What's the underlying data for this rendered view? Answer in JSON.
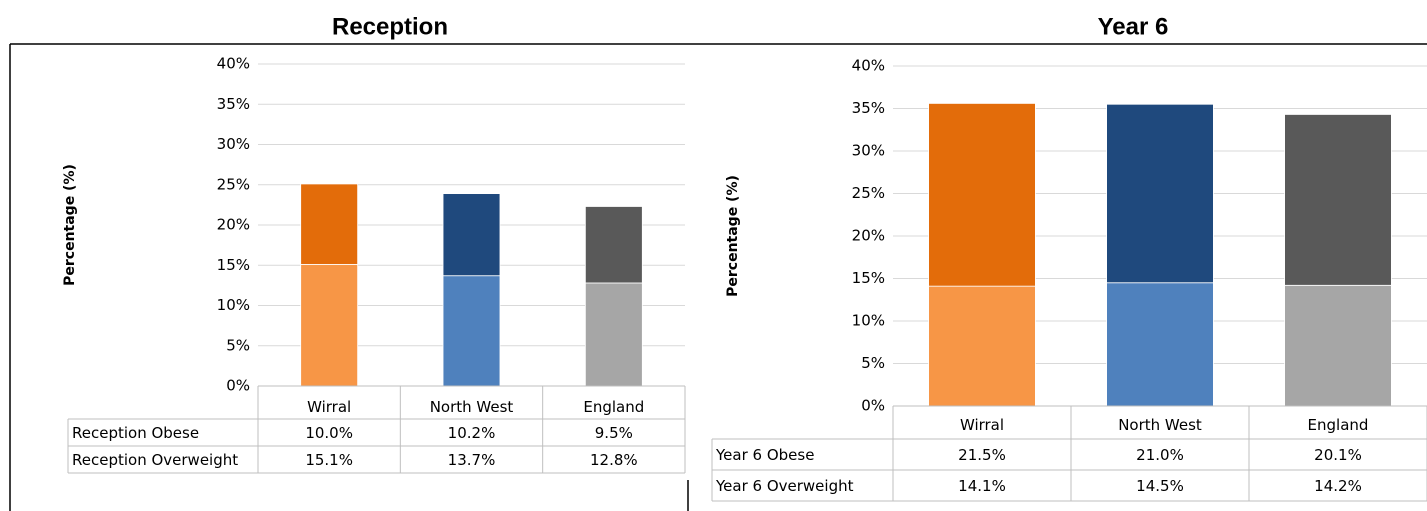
{
  "chart_data": [
    {
      "type": "bar",
      "stacked": true,
      "title": "Reception",
      "y_label": "Percentage (%)",
      "categories": [
        "Wirral",
        "North West",
        "England"
      ],
      "series": [
        {
          "name": "Reception  Obese",
          "colors": [
            "#e36c0a",
            "#1f497d",
            "#595959"
          ],
          "values": [
            10.0,
            10.2,
            9.5
          ],
          "value_labels": [
            "10.0%",
            "10.2%",
            "9.5%"
          ]
        },
        {
          "name": "Reception Overweight",
          "colors": [
            "#f79646",
            "#4f81bd",
            "#a6a6a6"
          ],
          "values": [
            15.1,
            13.7,
            12.8
          ],
          "value_labels": [
            "15.1%",
            "13.7%",
            "12.8%"
          ]
        }
      ],
      "ylim": [
        0,
        40
      ],
      "yticks": [
        {
          "value": 0,
          "label": "0%"
        },
        {
          "value": 5,
          "label": "5%"
        },
        {
          "value": 10,
          "label": "10%"
        },
        {
          "value": 15,
          "label": "15%"
        },
        {
          "value": 20,
          "label": "20%"
        },
        {
          "value": 25,
          "label": "25%"
        },
        {
          "value": 30,
          "label": "30%"
        },
        {
          "value": 35,
          "label": "35%"
        },
        {
          "value": 40,
          "label": "40%"
        }
      ],
      "grid": true
    },
    {
      "type": "bar",
      "stacked": true,
      "title": "Year 6",
      "y_label": "Percentage (%)",
      "categories": [
        "Wirral",
        "North West",
        "England"
      ],
      "series": [
        {
          "name": "Year 6  Obese",
          "colors": [
            "#e36c0a",
            "#1f497d",
            "#595959"
          ],
          "values": [
            21.5,
            21.0,
            20.1
          ],
          "value_labels": [
            "21.5%",
            "21.0%",
            "20.1%"
          ]
        },
        {
          "name": "Year 6 Overweight",
          "colors": [
            "#f79646",
            "#4f81bd",
            "#a6a6a6"
          ],
          "values": [
            14.1,
            14.5,
            14.2
          ],
          "value_labels": [
            "14.1%",
            "14.5%",
            "14.2%"
          ]
        }
      ],
      "ylim": [
        0,
        40
      ],
      "yticks": [
        {
          "value": 0,
          "label": "0%"
        },
        {
          "value": 5,
          "label": "5%"
        },
        {
          "value": 10,
          "label": "10%"
        },
        {
          "value": 15,
          "label": "15%"
        },
        {
          "value": 20,
          "label": "20%"
        },
        {
          "value": 25,
          "label": "25%"
        },
        {
          "value": 30,
          "label": "30%"
        },
        {
          "value": 35,
          "label": "35%"
        },
        {
          "value": 40,
          "label": "40%"
        }
      ],
      "grid": true
    }
  ]
}
